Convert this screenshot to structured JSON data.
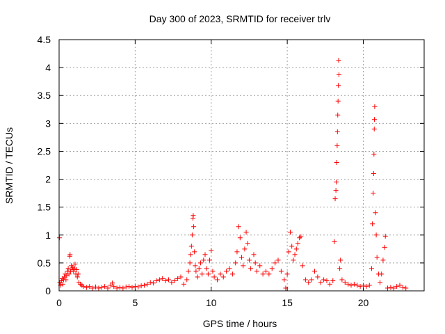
{
  "chart_data": {
    "type": "scatter",
    "title": "Day 300 of 2023, SRMTID for receiver trlv",
    "xlabel": "GPS time / hours",
    "ylabel": "SRMTID / TECUs",
    "xlim": [
      0,
      24
    ],
    "ylim": [
      0,
      4.5
    ],
    "xticks": [
      0,
      5,
      10,
      15,
      20
    ],
    "xtick_labels": [
      "0",
      "5",
      "10",
      "15",
      "20"
    ],
    "yticks": [
      0,
      0.5,
      1,
      1.5,
      2,
      2.5,
      3,
      3.5,
      4,
      4.5
    ],
    "ytick_labels": [
      "0",
      "0.5",
      "1",
      "1.5",
      "2",
      "2.5",
      "3",
      "3.5",
      "4",
      "4.5"
    ],
    "grid": true,
    "marker": "+",
    "series": [
      {
        "name": "SRMTID",
        "color": "#ff0000",
        "points": [
          [
            0.02,
            0.95
          ],
          [
            0.05,
            0.15
          ],
          [
            0.1,
            0.1
          ],
          [
            0.15,
            0.18
          ],
          [
            0.2,
            0.22
          ],
          [
            0.25,
            0.12
          ],
          [
            0.3,
            0.2
          ],
          [
            0.35,
            0.25
          ],
          [
            0.4,
            0.3
          ],
          [
            0.45,
            0.2
          ],
          [
            0.5,
            0.28
          ],
          [
            0.55,
            0.35
          ],
          [
            0.6,
            0.4
          ],
          [
            0.65,
            0.3
          ],
          [
            0.7,
            0.62
          ],
          [
            0.72,
            0.65
          ],
          [
            0.75,
            0.35
          ],
          [
            0.8,
            0.45
          ],
          [
            0.85,
            0.38
          ],
          [
            0.9,
            0.42
          ],
          [
            0.95,
            0.35
          ],
          [
            1.0,
            0.4
          ],
          [
            1.05,
            0.48
          ],
          [
            1.1,
            0.3
          ],
          [
            1.15,
            0.38
          ],
          [
            1.2,
            0.25
          ],
          [
            1.25,
            0.3
          ],
          [
            1.3,
            0.15
          ],
          [
            1.4,
            0.12
          ],
          [
            1.5,
            0.1
          ],
          [
            1.6,
            0.08
          ],
          [
            1.8,
            0.06
          ],
          [
            2.0,
            0.08
          ],
          [
            2.2,
            0.05
          ],
          [
            2.4,
            0.07
          ],
          [
            2.6,
            0.05
          ],
          [
            2.8,
            0.06
          ],
          [
            3.0,
            0.08
          ],
          [
            3.2,
            0.05
          ],
          [
            3.4,
            0.1
          ],
          [
            3.5,
            0.14
          ],
          [
            3.6,
            0.08
          ],
          [
            3.8,
            0.05
          ],
          [
            4.0,
            0.06
          ],
          [
            4.2,
            0.05
          ],
          [
            4.4,
            0.07
          ],
          [
            4.6,
            0.08
          ],
          [
            4.8,
            0.06
          ],
          [
            5.0,
            0.08
          ],
          [
            5.2,
            0.07
          ],
          [
            5.4,
            0.09
          ],
          [
            5.6,
            0.1
          ],
          [
            5.8,
            0.12
          ],
          [
            6.0,
            0.15
          ],
          [
            6.2,
            0.14
          ],
          [
            6.4,
            0.18
          ],
          [
            6.6,
            0.2
          ],
          [
            6.8,
            0.22
          ],
          [
            7.0,
            0.18
          ],
          [
            7.2,
            0.2
          ],
          [
            7.4,
            0.15
          ],
          [
            7.6,
            0.18
          ],
          [
            7.8,
            0.22
          ],
          [
            8.0,
            0.25
          ],
          [
            8.2,
            0.12
          ],
          [
            8.4,
            0.2
          ],
          [
            8.5,
            0.35
          ],
          [
            8.6,
            0.5
          ],
          [
            8.65,
            0.65
          ],
          [
            8.7,
            0.8
          ],
          [
            8.75,
            1.0
          ],
          [
            8.8,
            1.3
          ],
          [
            8.82,
            1.35
          ],
          [
            8.85,
            1.15
          ],
          [
            8.9,
            0.7
          ],
          [
            8.95,
            0.45
          ],
          [
            9.0,
            0.35
          ],
          [
            9.1,
            0.25
          ],
          [
            9.2,
            0.4
          ],
          [
            9.3,
            0.5
          ],
          [
            9.4,
            0.3
          ],
          [
            9.5,
            0.55
          ],
          [
            9.6,
            0.65
          ],
          [
            9.7,
            0.4
          ],
          [
            9.8,
            0.3
          ],
          [
            9.9,
            0.55
          ],
          [
            10.0,
            0.72
          ],
          [
            10.1,
            0.35
          ],
          [
            10.2,
            0.25
          ],
          [
            10.4,
            0.2
          ],
          [
            10.6,
            0.3
          ],
          [
            10.8,
            0.25
          ],
          [
            11.0,
            0.35
          ],
          [
            11.2,
            0.4
          ],
          [
            11.4,
            0.3
          ],
          [
            11.6,
            0.5
          ],
          [
            11.7,
            0.7
          ],
          [
            11.8,
            1.15
          ],
          [
            11.9,
            0.95
          ],
          [
            12.0,
            0.6
          ],
          [
            12.1,
            0.45
          ],
          [
            12.2,
            0.75
          ],
          [
            12.3,
            1.05
          ],
          [
            12.4,
            0.85
          ],
          [
            12.5,
            0.55
          ],
          [
            12.6,
            0.4
          ],
          [
            12.8,
            0.65
          ],
          [
            12.9,
            0.5
          ],
          [
            13.0,
            0.35
          ],
          [
            13.2,
            0.45
          ],
          [
            13.4,
            0.3
          ],
          [
            13.6,
            0.35
          ],
          [
            13.8,
            0.3
          ],
          [
            14.0,
            0.4
          ],
          [
            14.2,
            0.5
          ],
          [
            14.4,
            0.55
          ],
          [
            14.6,
            0.35
          ],
          [
            14.8,
            0.2
          ],
          [
            14.9,
            0.05
          ],
          [
            15.0,
            0.3
          ],
          [
            15.1,
            0.7
          ],
          [
            15.2,
            1.05
          ],
          [
            15.3,
            0.8
          ],
          [
            15.4,
            0.55
          ],
          [
            15.5,
            0.65
          ],
          [
            15.6,
            0.75
          ],
          [
            15.7,
            0.85
          ],
          [
            15.8,
            0.95
          ],
          [
            15.9,
            0.97
          ],
          [
            16.0,
            0.45
          ],
          [
            16.2,
            0.2
          ],
          [
            16.4,
            0.15
          ],
          [
            16.6,
            0.2
          ],
          [
            16.8,
            0.35
          ],
          [
            17.0,
            0.25
          ],
          [
            17.2,
            0.15
          ],
          [
            17.4,
            0.2
          ],
          [
            17.6,
            0.18
          ],
          [
            17.8,
            0.12
          ],
          [
            18.0,
            0.18
          ],
          [
            18.1,
            0.88
          ],
          [
            18.15,
            1.65
          ],
          [
            18.2,
            1.8
          ],
          [
            18.22,
            1.95
          ],
          [
            18.25,
            2.3
          ],
          [
            18.28,
            2.6
          ],
          [
            18.3,
            2.85
          ],
          [
            18.32,
            3.15
          ],
          [
            18.34,
            3.4
          ],
          [
            18.36,
            3.68
          ],
          [
            18.38,
            4.13
          ],
          [
            18.4,
            3.87
          ],
          [
            18.45,
            0.4
          ],
          [
            18.5,
            0.55
          ],
          [
            18.6,
            0.2
          ],
          [
            18.8,
            0.15
          ],
          [
            19.0,
            0.12
          ],
          [
            19.2,
            0.1
          ],
          [
            19.4,
            0.12
          ],
          [
            19.6,
            0.1
          ],
          [
            19.8,
            0.08
          ],
          [
            20.0,
            0.1
          ],
          [
            20.2,
            0.08
          ],
          [
            20.4,
            0.1
          ],
          [
            20.55,
            0.4
          ],
          [
            20.6,
            1.2
          ],
          [
            20.65,
            1.75
          ],
          [
            20.68,
            2.1
          ],
          [
            20.7,
            2.45
          ],
          [
            20.72,
            2.9
          ],
          [
            20.73,
            3.07
          ],
          [
            20.75,
            3.3
          ],
          [
            20.8,
            1.4
          ],
          [
            20.85,
            1.0
          ],
          [
            20.9,
            0.6
          ],
          [
            21.0,
            0.3
          ],
          [
            21.1,
            0.15
          ],
          [
            21.2,
            0.3
          ],
          [
            21.3,
            0.55
          ],
          [
            21.4,
            0.78
          ],
          [
            21.45,
            0.98
          ],
          [
            21.6,
            0.05
          ],
          [
            21.8,
            0.06
          ],
          [
            22.0,
            0.05
          ],
          [
            22.2,
            0.08
          ],
          [
            22.4,
            0.1
          ],
          [
            22.6,
            0.06
          ],
          [
            22.8,
            0.05
          ]
        ]
      }
    ]
  }
}
